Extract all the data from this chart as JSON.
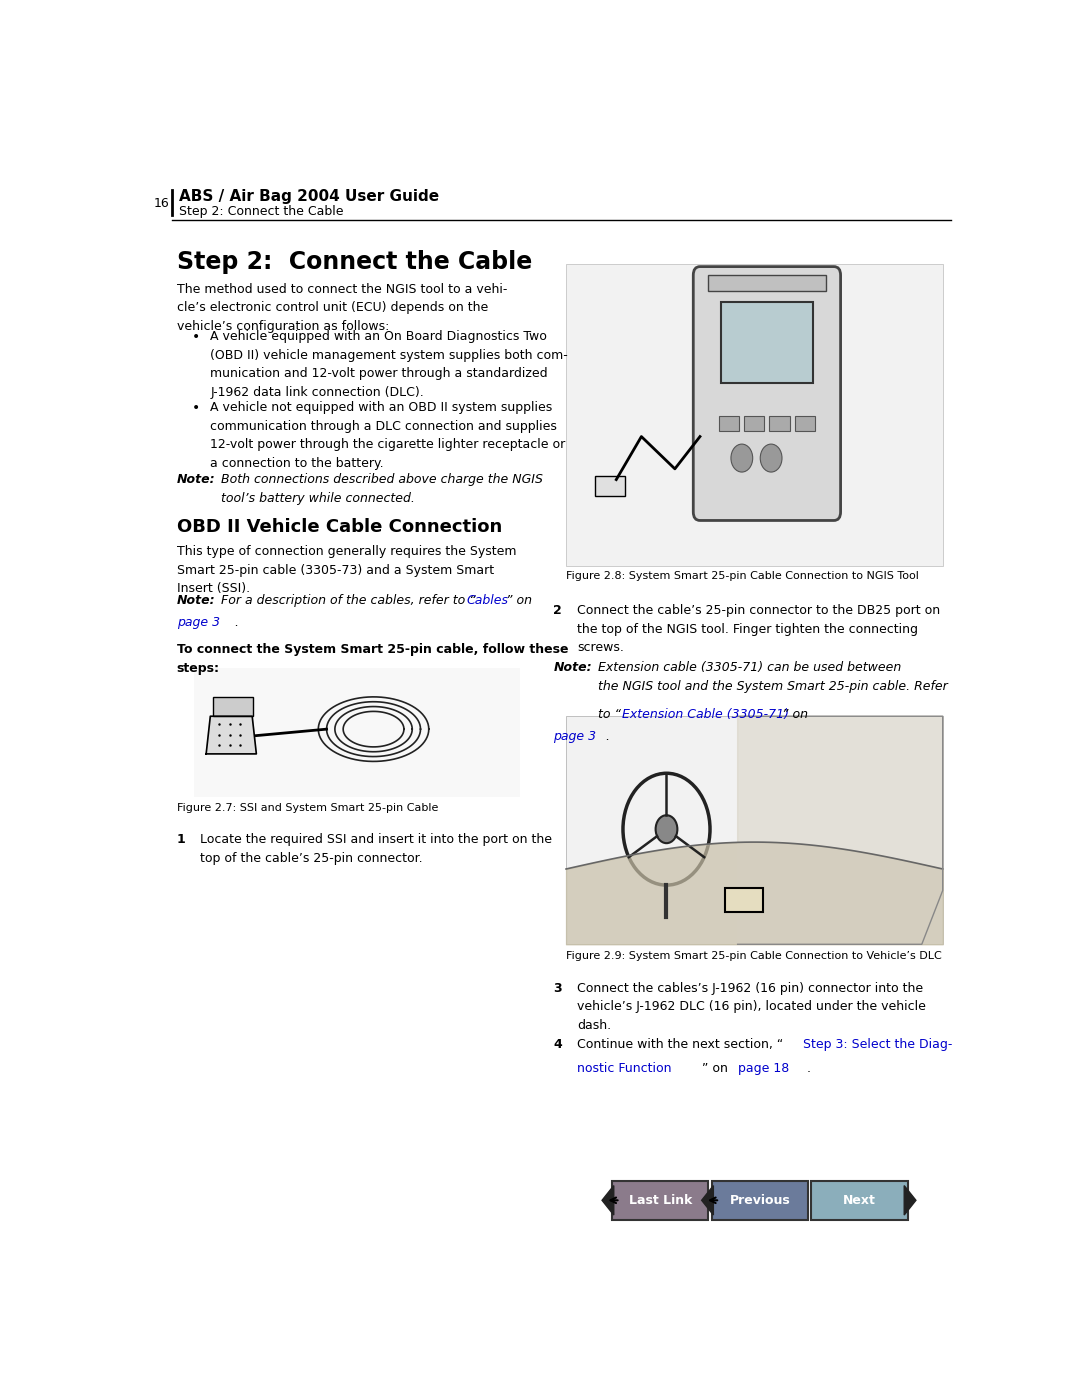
{
  "page_number": "16",
  "header_bold": "ABS / Air Bag 2004 User Guide",
  "header_sub": "Step 2: Connect the Cable",
  "section1_title": "Step 2:  Connect the Cable",
  "bullet1": "A vehicle equipped with an On Board Diagnostics Two\n(OBD II) vehicle management system supplies both com-\nmunication and 12-volt power through a standardized\nJ-1962 data link connection (DLC).",
  "bullet2": "A vehicle not equipped with an OBD II system supplies\ncommunication through a DLC connection and supplies\n12-volt power through the cigarette lighter receptacle or\na connection to the battery.",
  "note1_bold": "Note:",
  "note1_text": "  Both connections described above charge the NGIS\ntool’s battery while connected.",
  "section2_title": "OBD II Vehicle Cable Connection",
  "section2_body": "This type of connection generally requires the System\nSmart 25-pin cable (3305-73) and a System Smart\nInsert (SSI).",
  "note2_bold": "Note:",
  "note2_text": "  For a description of the cables, refer to “Cables” on\npage 3.",
  "note2_link1": "Cables",
  "note2_link2": "page 3",
  "steps_header": "To connect the System Smart 25-pin cable, follow these\nsteps:",
  "fig27_caption": "Figure 2.7: SSI and System Smart 25-pin Cable",
  "step1_num": "1",
  "step1_text": "Locate the required SSI and insert it into the port on the\ntop of the cable’s 25-pin connector.",
  "fig28_caption": "Figure 2.8: System Smart 25-pin Cable Connection to NGIS Tool",
  "step2_num": "2",
  "step2_text": "Connect the cable’s 25-pin connector to the DB25 port on\nthe top of the NGIS tool. Finger tighten the connecting\nscrews.",
  "note3_bold": "Note:",
  "note3_text1": "  Extension cable (3305-71) can be used between\nthe NGIS tool and the System Smart 25-pin cable. Refer\nto “",
  "note3_link": "Extension Cable (3305-71)",
  "note3_text2": "” on ",
  "note3_link2": "page 3",
  "note3_text3": ".",
  "fig29_caption": "Figure 2.9: System Smart 25-pin Cable Connection to Vehicle’s DLC",
  "step3_num": "3",
  "step3_text": "Connect the cables’s J-1962 (16 pin) connector into the\nvehicle’s J-1962 DLC (16 pin), located under the vehicle\ndash.",
  "step4_num": "4",
  "step4_pre": "Continue with the next section, “",
  "step4_link": "Step 3: Select the Diag-\nnostic Function",
  "step4_mid": "” on ",
  "step4_link2": "page 18",
  "step4_end": ".",
  "btn_lastlink": "Last Link",
  "btn_previous": "Previous",
  "btn_next": "Next",
  "bg_color": "#ffffff",
  "text_color": "#000000",
  "link_color": "#0000cc",
  "btn_lastlink_color": "#8b7b8b",
  "btn_previous_color": "#6b7b9b",
  "btn_next_color": "#8baebb",
  "btn_text_color": "#ffffff",
  "lm": 0.05,
  "cs": 0.5
}
